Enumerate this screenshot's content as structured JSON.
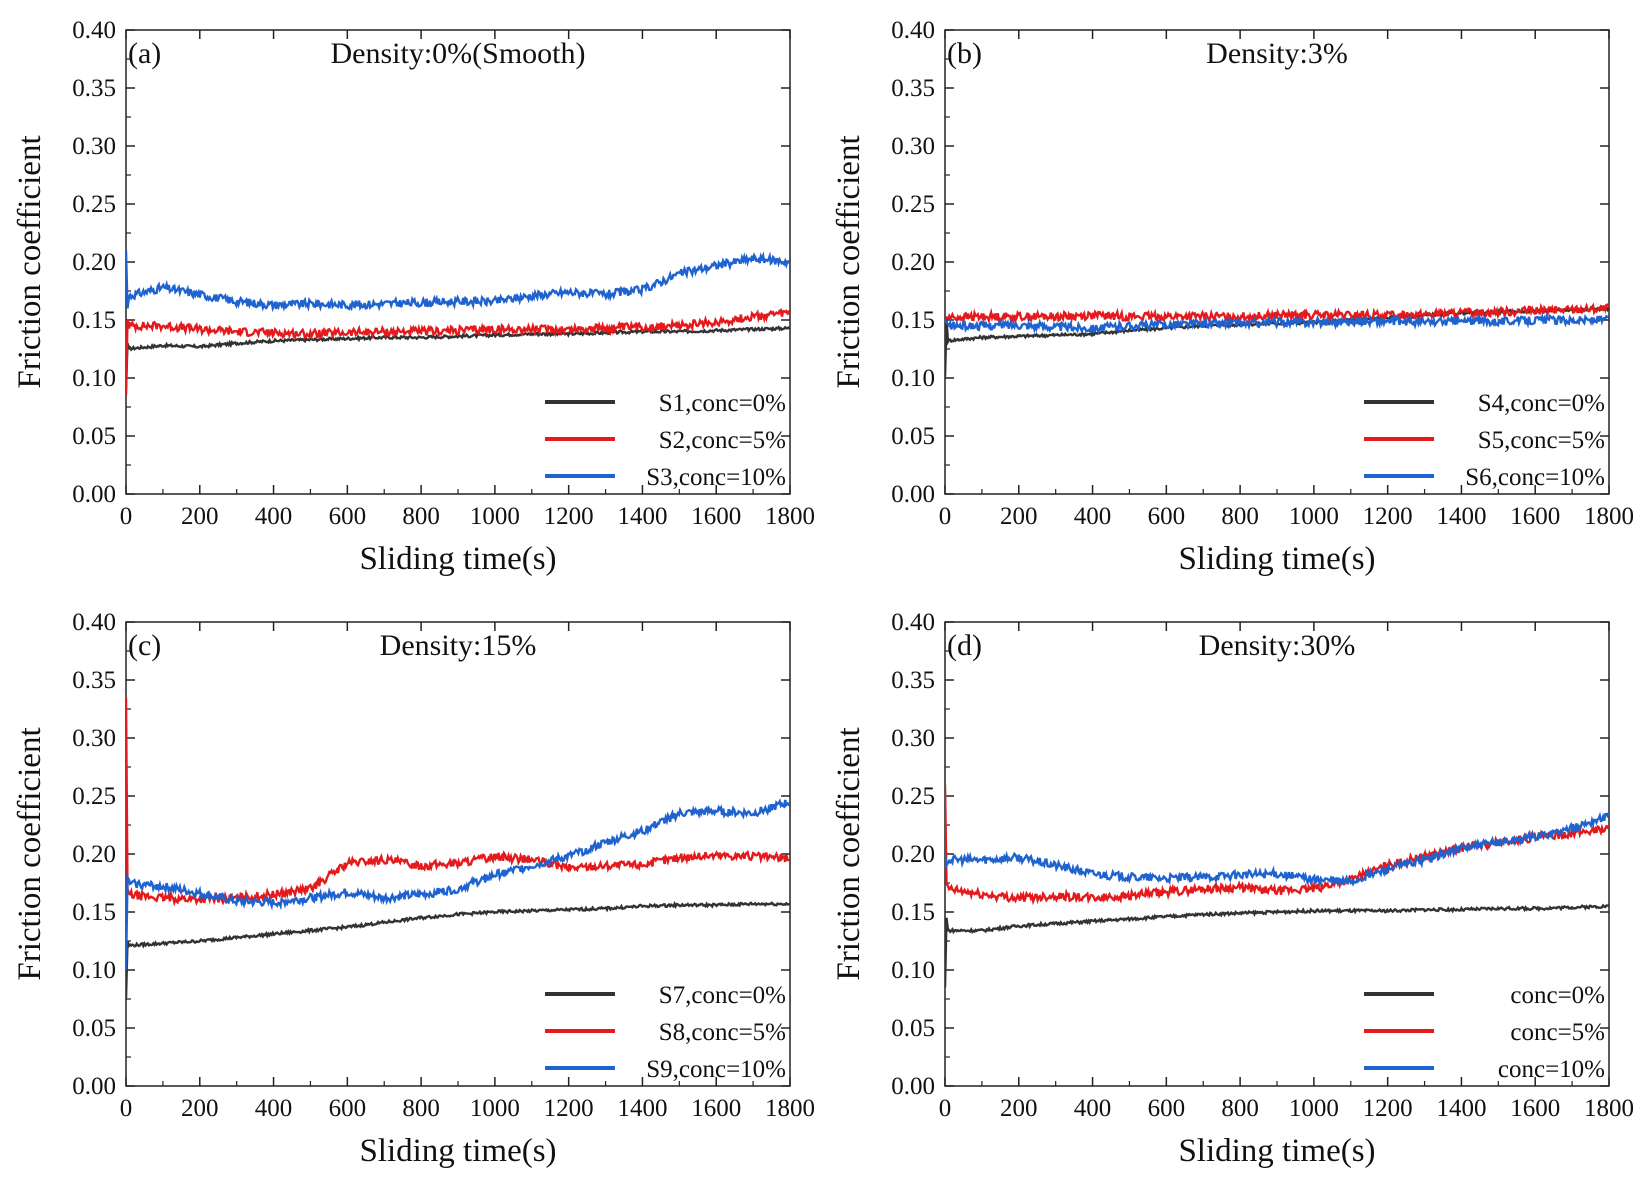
{
  "figure": {
    "domain": "Chart"
  },
  "chart_data": [
    {
      "type": "line",
      "panel": "(a)",
      "title": "Density:0%(Smooth)",
      "xlabel": "Sliding time(s)",
      "ylabel": "Friction coefficient",
      "xlim": [
        0,
        1800
      ],
      "ylim": [
        0,
        0.4
      ],
      "xticks": [
        "0",
        "200",
        "400",
        "600",
        "800",
        "1000",
        "1200",
        "1400",
        "1600",
        "1800"
      ],
      "yticks": [
        "0.00",
        "0.05",
        "0.10",
        "0.15",
        "0.20",
        "0.25",
        "0.30",
        "0.35",
        "0.40"
      ],
      "legend_position": "bottom-right",
      "x": [
        0,
        100,
        200,
        300,
        400,
        500,
        600,
        700,
        800,
        900,
        1000,
        1100,
        1200,
        1300,
        1400,
        1500,
        1600,
        1700,
        1800
      ],
      "series": [
        {
          "name": "S1,conc=0%",
          "color": "#333333",
          "start": [
            0.09,
            0.13
          ],
          "values": [
            0.125,
            0.128,
            0.127,
            0.13,
            0.132,
            0.133,
            0.134,
            0.135,
            0.135,
            0.136,
            0.137,
            0.138,
            0.138,
            0.139,
            0.14,
            0.14,
            0.141,
            0.142,
            0.143
          ]
        },
        {
          "name": "S2,conc=5%",
          "color": "#e41a1c",
          "start": [
            0.085,
            0.15
          ],
          "values": [
            0.145,
            0.145,
            0.142,
            0.14,
            0.139,
            0.138,
            0.139,
            0.14,
            0.14,
            0.141,
            0.142,
            0.142,
            0.142,
            0.143,
            0.144,
            0.145,
            0.148,
            0.153,
            0.156
          ]
        },
        {
          "name": "S3,conc=10%",
          "color": "#1f63d0",
          "start": [
            0.21,
            0.16
          ],
          "values": [
            0.17,
            0.178,
            0.172,
            0.166,
            0.163,
            0.164,
            0.163,
            0.164,
            0.165,
            0.166,
            0.166,
            0.171,
            0.174,
            0.172,
            0.176,
            0.19,
            0.197,
            0.203,
            0.2
          ]
        }
      ]
    },
    {
      "type": "line",
      "panel": "(b)",
      "title": "Density:3%",
      "xlabel": "Sliding time(s)",
      "ylabel": "Friction coefficient",
      "xlim": [
        0,
        1800
      ],
      "ylim": [
        0,
        0.4
      ],
      "xticks": [
        "0",
        "200",
        "400",
        "600",
        "800",
        "1000",
        "1200",
        "1400",
        "1600",
        "1800"
      ],
      "yticks": [
        "0.00",
        "0.05",
        "0.10",
        "0.15",
        "0.20",
        "0.25",
        "0.30",
        "0.35",
        "0.40"
      ],
      "legend_position": "bottom-right",
      "x": [
        0,
        100,
        200,
        300,
        400,
        500,
        600,
        700,
        800,
        900,
        1000,
        1100,
        1200,
        1300,
        1400,
        1500,
        1600,
        1700,
        1800
      ],
      "series": [
        {
          "name": "S4,conc=0%",
          "color": "#333333",
          "start": [
            0.1,
            0.15
          ],
          "values": [
            0.132,
            0.135,
            0.136,
            0.137,
            0.138,
            0.141,
            0.143,
            0.145,
            0.146,
            0.147,
            0.148,
            0.15,
            0.152,
            0.154,
            0.156,
            0.157,
            0.158,
            0.159,
            0.16
          ]
        },
        {
          "name": "S5,conc=5%",
          "color": "#e41a1c",
          "start": [
            0.15,
            0.152
          ],
          "values": [
            0.152,
            0.153,
            0.153,
            0.153,
            0.154,
            0.153,
            0.153,
            0.153,
            0.153,
            0.154,
            0.154,
            0.154,
            0.154,
            0.155,
            0.156,
            0.157,
            0.158,
            0.159,
            0.16
          ]
        },
        {
          "name": "S6,conc=10%",
          "color": "#1f63d0",
          "start": [
            0.15,
            0.148
          ],
          "values": [
            0.145,
            0.145,
            0.146,
            0.144,
            0.143,
            0.145,
            0.146,
            0.147,
            0.147,
            0.148,
            0.148,
            0.149,
            0.149,
            0.148,
            0.149,
            0.149,
            0.15,
            0.15,
            0.15
          ]
        }
      ]
    },
    {
      "type": "line",
      "panel": "(c)",
      "title": "Density:15%",
      "xlabel": "Sliding time(s)",
      "ylabel": "Friction coefficient",
      "xlim": [
        0,
        1800
      ],
      "ylim": [
        0,
        0.4
      ],
      "xticks": [
        "0",
        "200",
        "400",
        "600",
        "800",
        "1000",
        "1200",
        "1400",
        "1600",
        "1800"
      ],
      "yticks": [
        "0.00",
        "0.05",
        "0.10",
        "0.15",
        "0.20",
        "0.25",
        "0.30",
        "0.35",
        "0.40"
      ],
      "legend_position": "bottom-right",
      "x": [
        0,
        100,
        200,
        300,
        400,
        500,
        600,
        700,
        800,
        900,
        1000,
        1100,
        1200,
        1300,
        1400,
        1500,
        1600,
        1700,
        1800
      ],
      "series": [
        {
          "name": "S7,conc=0%",
          "color": "#333333",
          "start": [
            0.075,
            0.125
          ],
          "values": [
            0.121,
            0.123,
            0.125,
            0.128,
            0.131,
            0.134,
            0.137,
            0.141,
            0.145,
            0.148,
            0.15,
            0.151,
            0.152,
            0.153,
            0.155,
            0.156,
            0.156,
            0.157,
            0.157
          ]
        },
        {
          "name": "S8,conc=5%",
          "color": "#e41a1c",
          "start": [
            0.335,
            0.17
          ],
          "values": [
            0.165,
            0.162,
            0.161,
            0.162,
            0.165,
            0.17,
            0.192,
            0.195,
            0.19,
            0.192,
            0.198,
            0.195,
            0.188,
            0.19,
            0.191,
            0.197,
            0.199,
            0.198,
            0.196
          ]
        },
        {
          "name": "S9,conc=10%",
          "color": "#1f63d0",
          "start": [
            0.1,
            0.18
          ],
          "values": [
            0.175,
            0.172,
            0.166,
            0.159,
            0.158,
            0.162,
            0.167,
            0.162,
            0.165,
            0.17,
            0.182,
            0.19,
            0.198,
            0.21,
            0.22,
            0.235,
            0.237,
            0.235,
            0.245
          ]
        }
      ]
    },
    {
      "type": "line",
      "panel": "(d)",
      "title": "Density:30%",
      "xlabel": "Sliding time(s)",
      "ylabel": "Friction coefficient",
      "xlim": [
        0,
        1800
      ],
      "ylim": [
        0,
        0.4
      ],
      "xticks": [
        "0",
        "200",
        "400",
        "600",
        "800",
        "1000",
        "1200",
        "1400",
        "1600",
        "1800"
      ],
      "yticks": [
        "0.00",
        "0.05",
        "0.10",
        "0.15",
        "0.20",
        "0.25",
        "0.30",
        "0.35",
        "0.40"
      ],
      "legend_position": "bottom-right",
      "x": [
        0,
        100,
        200,
        300,
        400,
        500,
        600,
        700,
        800,
        900,
        1000,
        1100,
        1200,
        1300,
        1400,
        1500,
        1600,
        1700,
        1800
      ],
      "series": [
        {
          "name": "conc=0%",
          "color": "#333333",
          "start": [
            0.085,
            0.145
          ],
          "values": [
            0.134,
            0.134,
            0.138,
            0.14,
            0.142,
            0.144,
            0.146,
            0.148,
            0.149,
            0.15,
            0.151,
            0.151,
            0.151,
            0.152,
            0.152,
            0.153,
            0.153,
            0.154,
            0.155
          ]
        },
        {
          "name": "conc=5%",
          "color": "#e41a1c",
          "start": [
            0.26,
            0.175
          ],
          "values": [
            0.17,
            0.165,
            0.162,
            0.164,
            0.162,
            0.164,
            0.167,
            0.17,
            0.171,
            0.168,
            0.17,
            0.178,
            0.19,
            0.198,
            0.205,
            0.21,
            0.214,
            0.218,
            0.222
          ]
        },
        {
          "name": "conc=10%",
          "color": "#1f63d0",
          "start": [
            0.2,
            0.19
          ],
          "values": [
            0.195,
            0.195,
            0.197,
            0.19,
            0.183,
            0.18,
            0.179,
            0.18,
            0.182,
            0.183,
            0.178,
            0.176,
            0.187,
            0.195,
            0.205,
            0.21,
            0.215,
            0.222,
            0.233
          ]
        }
      ]
    }
  ]
}
